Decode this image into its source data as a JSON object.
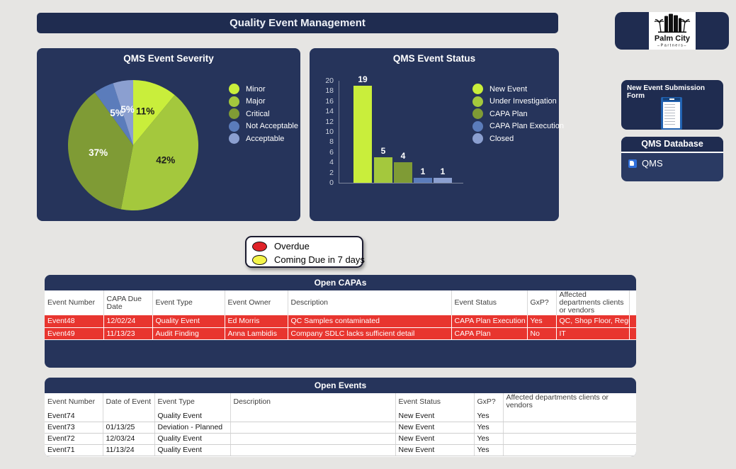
{
  "page": {
    "title": "Quality Event Management"
  },
  "chart_data": [
    {
      "type": "pie",
      "title": "QMS Event Severity",
      "labels": [
        "Minor",
        "Major",
        "Critical",
        "Not Acceptable",
        "Acceptable"
      ],
      "values": [
        11,
        42,
        37,
        5,
        5
      ],
      "unit": "percent",
      "colors": [
        "#c9ee3b",
        "#a4c83d",
        "#7f9b35",
        "#5b7cbb",
        "#8b9fd0"
      ],
      "label_colors": [
        "#1c1c1c",
        "#1c1c1c",
        "#ffffff",
        "#ffffff",
        "#ffffff"
      ],
      "legend_position": "right"
    },
    {
      "type": "bar",
      "title": "QMS Event Status",
      "categories": [
        "New Event",
        "Under Investigation",
        "CAPA Plan",
        "CAPA Plan Execution",
        "Closed"
      ],
      "values": [
        19,
        5,
        4,
        1,
        1
      ],
      "colors": [
        "#c9ee3b",
        "#a4c83d",
        "#7f9b35",
        "#5b7cbb",
        "#8b9fd0"
      ],
      "ylim": [
        0,
        20
      ],
      "ytick_step": 2,
      "grid": false,
      "legend_position": "right"
    }
  ],
  "logo": {
    "name": "Palm City",
    "subtitle": "Partners"
  },
  "form_panel": {
    "title": "New Event Submission Form"
  },
  "qms_database": {
    "title": "QMS Database",
    "link_label": "QMS"
  },
  "due_legend": {
    "items": [
      {
        "label": "Overdue",
        "color": "#e02329"
      },
      {
        "label": "Coming Due in 7 days",
        "color": "#f5f54a"
      }
    ]
  },
  "open_capas": {
    "title": "Open CAPAs",
    "columns": [
      "Event Number",
      "CAPA Due Date",
      "Event Type",
      "Event Owner",
      "Description",
      "Event Status",
      "GxP?",
      "Affected departments clients or vendors"
    ],
    "rows": [
      [
        "Event48",
        "12/02/24",
        "Quality Event",
        "Ed Morris",
        "QC Samples contaminated",
        "CAPA Plan Execution",
        "Yes",
        "QC, Shop Floor, Regulat"
      ],
      [
        "Event49",
        "11/13/23",
        "Audit Finding",
        "Anna Lambidis",
        "Company SDLC lacks sufficient detail",
        "CAPA Plan",
        "No",
        "IT"
      ]
    ],
    "highlight_color": "#e8352f"
  },
  "open_events": {
    "title": "Open Events",
    "columns": [
      "Event Number",
      "Date of Event",
      "Event Type",
      "Description",
      "Event Status",
      "GxP?",
      "Affected departments clients or vendors"
    ],
    "rows": [
      [
        "Event74",
        "",
        "Quality Event",
        "",
        "New Event",
        "Yes",
        ""
      ],
      [
        "Event73",
        "01/13/25",
        "Deviation - Planned",
        "",
        "New Event",
        "Yes",
        ""
      ],
      [
        "Event72",
        "12/03/24",
        "Quality Event",
        "",
        "New Event",
        "Yes",
        ""
      ],
      [
        "Event71",
        "11/13/24",
        "Quality Event",
        "",
        "New Event",
        "Yes",
        ""
      ]
    ]
  }
}
